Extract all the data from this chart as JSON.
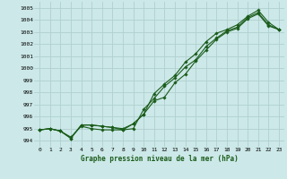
{
  "xlabel": "Graphe pression niveau de la mer (hPa)",
  "bg_color": "#cce8e8",
  "grid_color": "#b0d0d0",
  "line_color": "#1a5c1a",
  "xlim": [
    -0.5,
    23.5
  ],
  "ylim": [
    993.5,
    1005.5
  ],
  "yticks": [
    994,
    995,
    996,
    997,
    998,
    999,
    1000,
    1001,
    1002,
    1003,
    1004,
    1005
  ],
  "xticks": [
    0,
    1,
    2,
    3,
    4,
    5,
    6,
    7,
    8,
    9,
    10,
    11,
    12,
    13,
    14,
    15,
    16,
    17,
    18,
    19,
    20,
    21,
    22,
    23
  ],
  "series1_x": [
    0,
    1,
    2,
    3,
    4,
    5,
    6,
    7,
    8,
    9,
    10,
    11,
    12,
    13,
    14,
    15,
    16,
    17,
    18,
    19,
    20,
    21,
    22,
    23
  ],
  "series1_y": [
    994.9,
    995.0,
    994.8,
    994.3,
    995.2,
    995.0,
    994.9,
    994.9,
    994.9,
    995.0,
    996.6,
    997.5,
    998.5,
    999.2,
    1000.1,
    1000.7,
    1001.8,
    1002.5,
    1003.1,
    1003.4,
    1004.2,
    1004.6,
    1003.6,
    1003.2
  ],
  "series2_x": [
    0,
    1,
    2,
    3,
    4,
    5,
    6,
    7,
    8,
    9,
    10,
    11,
    12,
    13,
    14,
    15,
    16,
    17,
    18,
    19,
    20,
    21,
    22,
    23
  ],
  "series2_y": [
    994.9,
    995.0,
    994.8,
    994.2,
    995.3,
    995.3,
    995.2,
    995.1,
    995.0,
    995.4,
    996.2,
    997.9,
    998.7,
    999.4,
    1000.5,
    1001.2,
    1002.2,
    1002.9,
    1003.2,
    1003.6,
    1004.3,
    1004.8,
    1003.8,
    1003.2
  ],
  "series3_x": [
    0,
    1,
    2,
    3,
    4,
    5,
    6,
    7,
    8,
    9,
    10,
    11,
    12,
    13,
    14,
    15,
    16,
    17,
    18,
    19,
    20,
    21,
    22,
    23
  ],
  "series3_y": [
    994.9,
    995.0,
    994.8,
    994.2,
    995.3,
    995.3,
    995.2,
    995.1,
    994.9,
    995.4,
    996.2,
    997.3,
    997.6,
    998.8,
    999.5,
    1000.6,
    1001.5,
    1002.4,
    1003.0,
    1003.3,
    1004.1,
    1004.5,
    1003.5,
    1003.2
  ]
}
